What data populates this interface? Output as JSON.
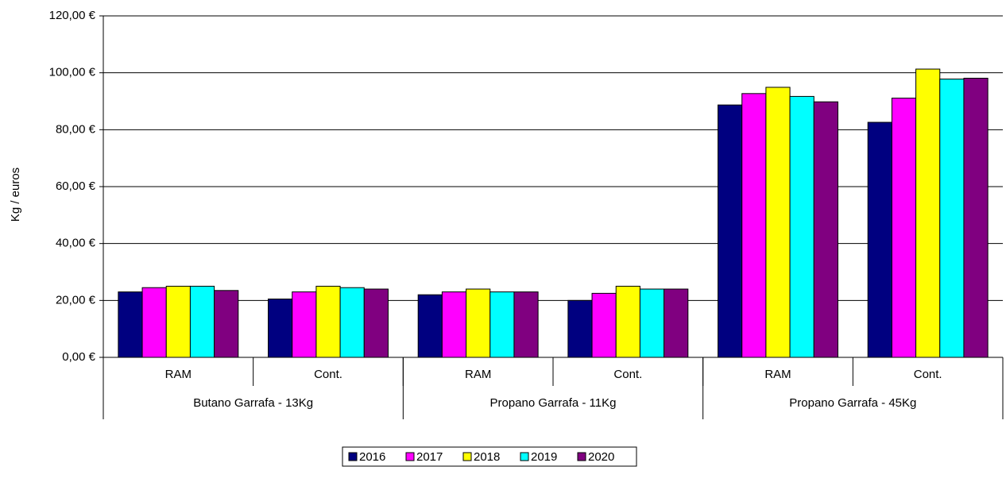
{
  "chart_data": {
    "type": "bar",
    "y_label": "Kg / euros",
    "categories": [
      "RAM",
      "Cont.",
      "RAM",
      "Cont.",
      "RAM",
      "Cont."
    ],
    "groups": [
      "Butano Garrafa - 13Kg",
      "Propano Garrafa - 11Kg",
      "Propano Garrafa - 45Kg"
    ],
    "series": [
      {
        "name": "2016",
        "color": "#000080",
        "values": [
          23,
          20.5,
          22,
          20,
          88.7,
          82.6
        ]
      },
      {
        "name": "2017",
        "color": "#ff00ff",
        "values": [
          24.5,
          23,
          23,
          22.5,
          92.7,
          91.1
        ]
      },
      {
        "name": "2018",
        "color": "#ffff00",
        "values": [
          25,
          25,
          24,
          25,
          94.9,
          101.3
        ]
      },
      {
        "name": "2019",
        "color": "#00ffff",
        "values": [
          25,
          24.5,
          23,
          24,
          91.7,
          97.8
        ]
      },
      {
        "name": "2020",
        "color": "#800080",
        "values": [
          23.5,
          24,
          23,
          24,
          89.8,
          98.1
        ]
      }
    ],
    "ylim": [
      0,
      120
    ],
    "yticks": [
      {
        "value": 0,
        "label": "0,00 €"
      },
      {
        "value": 20,
        "label": "20,00 €"
      },
      {
        "value": 40,
        "label": "40,00 €"
      },
      {
        "value": 60,
        "label": "60,00 €"
      },
      {
        "value": 80,
        "label": "80,00 €"
      },
      {
        "value": 100,
        "label": "100,00 €"
      },
      {
        "value": 120,
        "label": "120,00 €"
      }
    ],
    "grid": true
  }
}
